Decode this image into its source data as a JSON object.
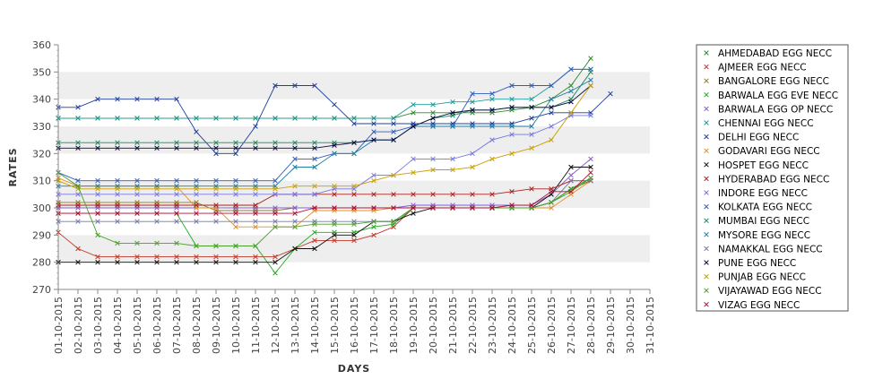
{
  "chart_data": {
    "type": "line",
    "xlabel": "DAYS",
    "ylabel": "RATES",
    "ylim": [
      270,
      360
    ],
    "yticks": [
      270,
      280,
      290,
      300,
      310,
      320,
      330,
      340,
      350,
      360
    ],
    "grid": "alternating horizontal bands",
    "legend_position": "right",
    "x": [
      "01-10-2015",
      "02-10-2015",
      "03-10-2015",
      "04-10-2015",
      "05-10-2015",
      "06-10-2015",
      "07-10-2015",
      "08-10-2015",
      "09-10-2015",
      "10-10-2015",
      "11-10-2015",
      "12-10-2015",
      "13-10-2015",
      "14-10-2015",
      "15-10-2015",
      "16-10-2015",
      "17-10-2015",
      "18-10-2015",
      "19-10-2015",
      "20-10-2015",
      "21-10-2015",
      "22-10-2015",
      "23-10-2015",
      "24-10-2015",
      "25-10-2015",
      "26-10-2015",
      "27-10-2015",
      "28-10-2015",
      "29-10-2015",
      "30-10-2015",
      "31-10-2015"
    ],
    "series": [
      {
        "name": "AHMEDABAD EGG NECC",
        "color": "#2e8b2e",
        "values": [
          333,
          333,
          333,
          333,
          333,
          333,
          333,
          333,
          333,
          333,
          333,
          333,
          333,
          333,
          333,
          333,
          333,
          333,
          335,
          335,
          335,
          335,
          335,
          336,
          337,
          340,
          345,
          355,
          null,
          null,
          null
        ]
      },
      {
        "name": "AJMEER EGG NECC",
        "color": "#c0392b",
        "values": [
          291,
          285,
          282,
          282,
          282,
          282,
          282,
          282,
          282,
          282,
          282,
          282,
          285,
          288,
          288,
          288,
          290,
          293,
          300,
          300,
          300,
          300,
          300,
          300,
          300,
          302,
          307,
          310,
          null,
          null,
          null
        ]
      },
      {
        "name": "BANGALORE EGG NECC",
        "color": "#8b7d2a",
        "values": [
          302,
          302,
          302,
          302,
          302,
          302,
          302,
          302,
          299,
          299,
          299,
          299,
          300,
          300,
          300,
          300,
          300,
          300,
          300,
          300,
          300,
          300,
          300,
          300,
          300,
          302,
          307,
          310,
          null,
          null,
          null
        ]
      },
      {
        "name": "BARWALA EGG EVE NECC",
        "color": "#22aa22",
        "values": [
          298,
          298,
          298,
          298,
          298,
          298,
          298,
          286,
          286,
          286,
          286,
          276,
          285,
          291,
          291,
          291,
          293,
          294,
          300,
          300,
          300,
          300,
          300,
          300,
          300,
          302,
          307,
          311,
          null,
          null,
          null
        ]
      },
      {
        "name": "BARWALA EGG OP NECC",
        "color": "#8a5ad0",
        "values": [
          300,
          300,
          300,
          300,
          300,
          300,
          300,
          300,
          300,
          300,
          300,
          300,
          300,
          300,
          300,
          300,
          300,
          300,
          301,
          301,
          301,
          301,
          301,
          301,
          301,
          305,
          312,
          318,
          null,
          null,
          null
        ]
      },
      {
        "name": "CHENNAI EGG NECC",
        "color": "#1c9c9c",
        "values": [
          333,
          333,
          333,
          333,
          333,
          333,
          333,
          333,
          333,
          333,
          333,
          333,
          333,
          333,
          333,
          333,
          333,
          333,
          338,
          338,
          339,
          339,
          340,
          340,
          340,
          345,
          351,
          351,
          null,
          null,
          null
        ]
      },
      {
        "name": "DELHI EGG NECC",
        "color": "#1f3f9c",
        "values": [
          337,
          337,
          340,
          340,
          340,
          340,
          340,
          328,
          320,
          320,
          330,
          345,
          345,
          345,
          338,
          331,
          331,
          331,
          331,
          331,
          331,
          331,
          331,
          331,
          333,
          335,
          335,
          335,
          342,
          null,
          null
        ]
      },
      {
        "name": "GODAVARI EGG NECC",
        "color": "#e0902a",
        "values": [
          311,
          308,
          308,
          308,
          308,
          308,
          308,
          300,
          300,
          293,
          293,
          293,
          293,
          299,
          299,
          299,
          299,
          300,
          300,
          300,
          300,
          300,
          300,
          300,
          300,
          300,
          305,
          310,
          null,
          null,
          null
        ]
      },
      {
        "name": "HOSPET EGG NECC",
        "color": "#111111",
        "values": [
          280,
          280,
          280,
          280,
          280,
          280,
          280,
          280,
          280,
          280,
          280,
          280,
          285,
          285,
          290,
          290,
          295,
          295,
          298,
          300,
          300,
          300,
          300,
          300,
          300,
          305,
          315,
          315,
          null,
          null,
          null
        ]
      },
      {
        "name": "HYDERABAD EGG NECC",
        "color": "#aa2222",
        "values": [
          301,
          301,
          301,
          301,
          301,
          301,
          301,
          301,
          301,
          301,
          301,
          305,
          305,
          305,
          305,
          305,
          305,
          305,
          305,
          305,
          305,
          305,
          305,
          306,
          307,
          307,
          310,
          310,
          null,
          null,
          null
        ]
      },
      {
        "name": "INDORE EGG NECC",
        "color": "#7777dd",
        "values": [
          305,
          305,
          305,
          305,
          305,
          305,
          305,
          305,
          305,
          305,
          305,
          305,
          305,
          305,
          307,
          307,
          312,
          312,
          318,
          318,
          318,
          320,
          325,
          327,
          327,
          330,
          334,
          334,
          null,
          null,
          null
        ]
      },
      {
        "name": "KOLKATA EGG NECC",
        "color": "#2e5dbf",
        "values": [
          313,
          310,
          310,
          310,
          310,
          310,
          310,
          310,
          310,
          310,
          310,
          310,
          318,
          318,
          320,
          320,
          328,
          328,
          330,
          330,
          330,
          342,
          342,
          345,
          345,
          345,
          351,
          351,
          null,
          null,
          null
        ]
      },
      {
        "name": "MUMBAI EGG NECC",
        "color": "#1b8a5a",
        "values": [
          324,
          324,
          324,
          324,
          324,
          324,
          324,
          324,
          324,
          324,
          324,
          324,
          324,
          324,
          324,
          324,
          325,
          325,
          330,
          333,
          334,
          336,
          336,
          337,
          337,
          337,
          340,
          350,
          null,
          null,
          null
        ]
      },
      {
        "name": "MYSORE EGG NECC",
        "color": "#1e7fa0",
        "values": [
          308,
          308,
          308,
          308,
          308,
          308,
          308,
          308,
          308,
          308,
          308,
          308,
          315,
          315,
          320,
          320,
          325,
          325,
          330,
          330,
          330,
          330,
          330,
          330,
          330,
          340,
          343,
          347,
          null,
          null,
          null
        ]
      },
      {
        "name": "NAMAKKAL EGG NECC",
        "color": "#7777aa",
        "values": [
          295,
          295,
          295,
          295,
          295,
          295,
          295,
          295,
          295,
          295,
          295,
          295,
          295,
          295,
          295,
          295,
          295,
          295,
          300,
          300,
          300,
          300,
          300,
          300,
          300,
          302,
          310,
          310,
          null,
          null,
          null
        ]
      },
      {
        "name": "PUNE EGG NECC",
        "color": "#0b0b40",
        "values": [
          322,
          322,
          322,
          322,
          322,
          322,
          322,
          322,
          322,
          322,
          322,
          322,
          322,
          322,
          323,
          324,
          325,
          325,
          330,
          333,
          335,
          336,
          336,
          337,
          337,
          337,
          339,
          345,
          null,
          null,
          null
        ]
      },
      {
        "name": "PUNJAB EGG NECC",
        "color": "#c8a000",
        "values": [
          310,
          307,
          307,
          307,
          307,
          307,
          307,
          307,
          307,
          307,
          307,
          307,
          308,
          308,
          308,
          308,
          310,
          312,
          313,
          314,
          314,
          315,
          318,
          320,
          322,
          325,
          335,
          345,
          null,
          null,
          null
        ]
      },
      {
        "name": "VIJAYAWAD EGG NECC",
        "color": "#4aa02a",
        "values": [
          313,
          308,
          290,
          287,
          287,
          287,
          287,
          286,
          286,
          286,
          286,
          293,
          293,
          294,
          294,
          294,
          295,
          295,
          300,
          300,
          300,
          300,
          300,
          300,
          300,
          302,
          306,
          311,
          null,
          null,
          null
        ]
      },
      {
        "name": "VIZAG EGG NECC",
        "color": "#b0103a",
        "values": [
          298,
          298,
          298,
          298,
          298,
          298,
          298,
          298,
          298,
          298,
          298,
          298,
          298,
          300,
          300,
          300,
          300,
          300,
          300,
          300,
          300,
          300,
          300,
          301,
          301,
          306,
          306,
          313,
          null,
          null,
          null
        ]
      }
    ]
  }
}
